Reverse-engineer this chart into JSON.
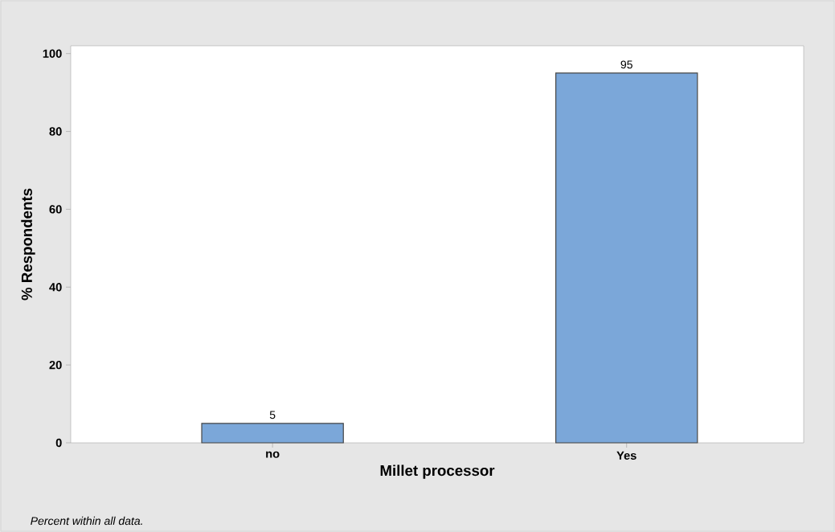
{
  "chart_data": {
    "type": "bar",
    "categories": [
      "no",
      "Yes"
    ],
    "values": [
      5,
      95
    ],
    "color": "#7ba7d9",
    "xlabel": "Millet processor",
    "ylabel": "% Respondents",
    "ylim": [
      0,
      102
    ],
    "yticks": [
      0,
      20,
      40,
      60,
      80,
      100
    ],
    "data_labels": true,
    "annotations": [
      "Percent within all data."
    ]
  }
}
